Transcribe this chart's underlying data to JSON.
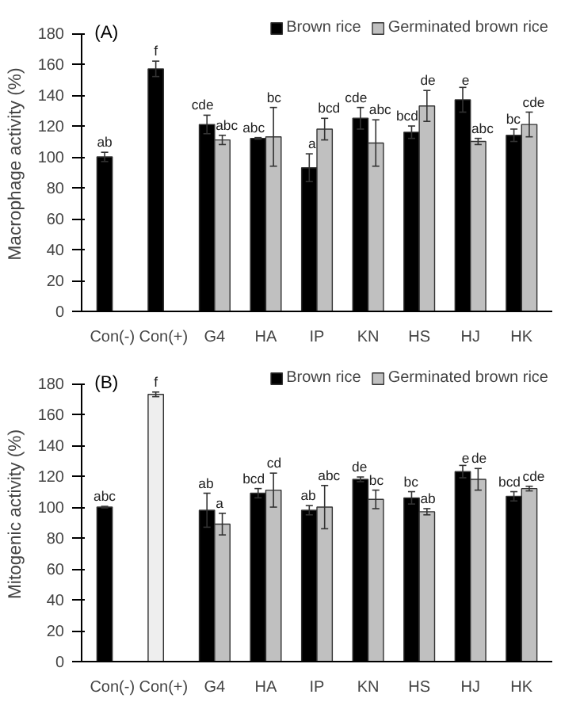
{
  "chart_data": [
    {
      "type": "bar",
      "title": "(A)",
      "ylabel": "Macrophage activity (%)",
      "categories": [
        "Con(-)",
        "Con(+)",
        "G4",
        "HA",
        "IP",
        "KN",
        "HS",
        "HJ",
        "HK"
      ],
      "ylim": [
        0,
        180
      ],
      "yticks": [
        0,
        20,
        40,
        60,
        80,
        100,
        120,
        140,
        160,
        180
      ],
      "grid": false,
      "legend": "top right",
      "series": [
        {
          "name": "Brown rice",
          "color": "#000000",
          "values": [
            100,
            157,
            121,
            112,
            93,
            125,
            116,
            137,
            114
          ],
          "errors": [
            3,
            5,
            6,
            0.5,
            9,
            7,
            4,
            8,
            4
          ],
          "value_labels": [
            "ab",
            "f",
            "cde",
            "abc",
            "a",
            "cde",
            "bcd",
            "e",
            "bc"
          ]
        },
        {
          "name": "Germinated brown rice",
          "color": "#c0c0c0",
          "values": [
            null,
            null,
            111,
            113,
            118,
            109,
            133,
            110,
            121
          ],
          "errors": [
            null,
            null,
            3,
            19,
            7,
            15,
            10,
            2,
            8
          ],
          "value_labels": [
            null,
            null,
            "abc",
            "bc",
            "bcd",
            "abc",
            "de",
            "abc",
            "cde"
          ]
        }
      ]
    },
    {
      "type": "bar",
      "title": "(B)",
      "ylabel": "Mitogenic activity (%)",
      "categories": [
        "Con(-)",
        "Con(+)",
        "G4",
        "HA",
        "IP",
        "KN",
        "HS",
        "HJ",
        "HK"
      ],
      "ylim": [
        0,
        180
      ],
      "yticks": [
        0,
        20,
        40,
        60,
        80,
        100,
        120,
        140,
        160,
        180
      ],
      "grid": false,
      "legend": "top right",
      "series": [
        {
          "name": "Brown rice",
          "color": "#000000",
          "values": [
            100,
            null,
            98,
            109,
            98,
            118,
            106,
            123,
            107
          ],
          "errors": [
            0.5,
            null,
            11,
            3,
            3,
            1.5,
            4,
            4,
            3
          ],
          "value_labels": [
            "abc",
            null,
            "ab",
            "bcd",
            "ab",
            "de",
            "bc",
            "e",
            "bcd"
          ]
        },
        {
          "name": "Germinated brown rice",
          "color": "#c0c0c0",
          "values": [
            null,
            null,
            89,
            111,
            100,
            105,
            97,
            118,
            112
          ],
          "errors": [
            null,
            null,
            7,
            11,
            14,
            6,
            2,
            7,
            1.5
          ],
          "value_labels": [
            null,
            null,
            "a",
            "cd",
            "abc",
            "bc",
            "ab",
            "de",
            "cde"
          ]
        },
        {
          "color": "#eeeeee",
          "values": [
            null,
            173,
            null,
            null,
            null,
            null,
            null,
            null,
            null
          ],
          "errors": [
            null,
            1.5,
            null,
            null,
            null,
            null,
            null,
            null,
            null
          ],
          "value_labels": [
            null,
            "f",
            null,
            null,
            null,
            null,
            null,
            null,
            null
          ]
        }
      ]
    }
  ]
}
